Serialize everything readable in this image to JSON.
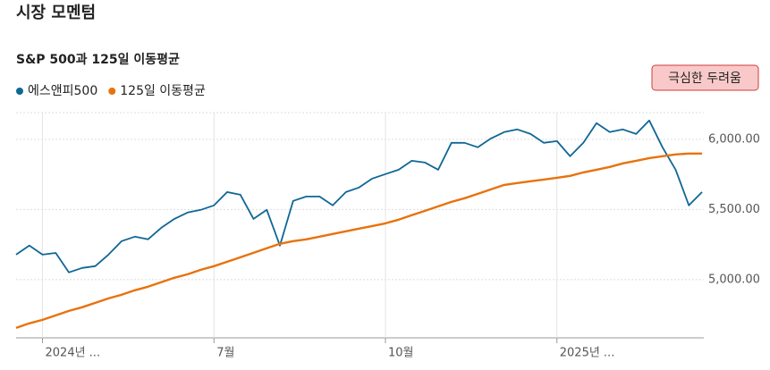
{
  "page_title": "시장 모멘텀",
  "badge": "극심한 두려움",
  "chart_data": {
    "type": "line",
    "title": "S&P 500과 125일 이동평균",
    "categories": [
      null,
      null,
      "2024년 ...",
      null,
      null,
      null,
      null,
      null,
      null,
      null,
      null,
      null,
      null,
      null,
      null,
      "7월",
      null,
      null,
      null,
      null,
      null,
      null,
      null,
      null,
      null,
      null,
      null,
      null,
      "10월",
      null,
      null,
      null,
      null,
      null,
      null,
      null,
      null,
      null,
      null,
      null,
      null,
      "2025년 ...",
      null,
      null,
      null,
      null,
      null,
      null,
      null,
      null,
      null,
      null,
      null
    ],
    "series": [
      {
        "name": "에스앤피500",
        "color": "#0f6795",
        "values": [
          5178,
          5242,
          5178,
          5190,
          5051,
          5083,
          5096,
          5178,
          5274,
          5306,
          5287,
          5369,
          5433,
          5478,
          5497,
          5529,
          5624,
          5605,
          5433,
          5497,
          5242,
          5561,
          5592,
          5592,
          5529,
          5624,
          5656,
          5720,
          5752,
          5783,
          5847,
          5834,
          5783,
          5975,
          5975,
          5943,
          6006,
          6051,
          6070,
          6038,
          5975,
          5987,
          5879,
          5975,
          6115,
          6051,
          6070,
          6038,
          6134,
          5943,
          5783,
          5529,
          5624
        ]
      },
      {
        "name": "125일 이동평균",
        "color": "#e8720c",
        "values": [
          4656,
          4688,
          4713,
          4745,
          4777,
          4803,
          4834,
          4866,
          4892,
          4924,
          4949,
          4981,
          5013,
          5038,
          5070,
          5096,
          5127,
          5159,
          5191,
          5223,
          5255,
          5274,
          5287,
          5306,
          5325,
          5344,
          5363,
          5382,
          5401,
          5427,
          5459,
          5490,
          5522,
          5554,
          5580,
          5611,
          5643,
          5675,
          5688,
          5701,
          5713,
          5726,
          5739,
          5764,
          5783,
          5803,
          5828,
          5847,
          5866,
          5879,
          5892,
          5898,
          5898
        ]
      }
    ],
    "ylim": [
      4585,
      6190
    ],
    "yticks": [
      {
        "value": 5000,
        "label": "5,000.00"
      },
      {
        "value": 5500,
        "label": "5,500.00"
      },
      {
        "value": 6000,
        "label": "6,000.00"
      }
    ],
    "grid": true
  }
}
